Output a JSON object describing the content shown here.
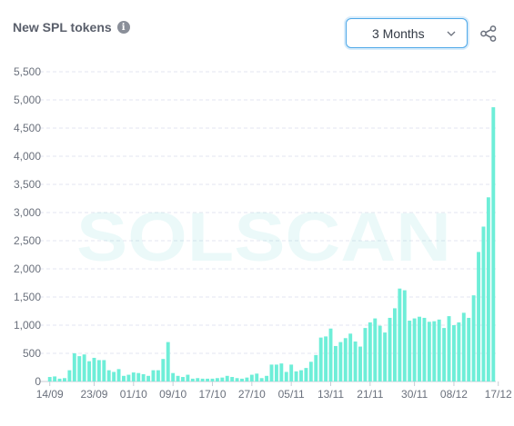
{
  "header": {
    "title": "New SPL tokens",
    "info_icon": "info-icon",
    "range_selected": "3 Months",
    "share_icon": "share-icon"
  },
  "watermark": {
    "text": "SOLSCAN"
  },
  "colors": {
    "bar": "#6eeed8",
    "grid": "#e3e6f0",
    "accent": "#4ea8e8"
  },
  "chart_data": {
    "type": "bar",
    "title": "New SPL tokens",
    "xlabel": "",
    "ylabel": "",
    "ylim": [
      0,
      5500
    ],
    "yticks": [
      0,
      500,
      1000,
      1500,
      2000,
      2500,
      3000,
      3500,
      4000,
      4500,
      5000,
      5500
    ],
    "ytick_labels": [
      "0",
      "500",
      "1,000",
      "1,500",
      "2,000",
      "2,500",
      "3,000",
      "3,500",
      "4,000",
      "4,500",
      "5,000",
      "5,500"
    ],
    "xtick_labels": [
      "14/09",
      "23/09",
      "01/10",
      "09/10",
      "17/10",
      "27/10",
      "05/11",
      "13/11",
      "21/11",
      "30/11",
      "08/12",
      "17/12"
    ],
    "xtick_indices": [
      0,
      9,
      17,
      25,
      33,
      41,
      49,
      57,
      65,
      74,
      82,
      91
    ],
    "grid": true,
    "values": [
      80,
      90,
      50,
      60,
      200,
      500,
      450,
      480,
      360,
      420,
      380,
      380,
      200,
      170,
      220,
      100,
      120,
      160,
      150,
      130,
      100,
      200,
      200,
      400,
      700,
      150,
      100,
      80,
      120,
      50,
      60,
      50,
      50,
      50,
      60,
      70,
      100,
      80,
      60,
      50,
      70,
      120,
      140,
      60,
      100,
      300,
      300,
      320,
      170,
      300,
      180,
      200,
      240,
      350,
      470,
      780,
      800,
      940,
      630,
      700,
      770,
      850,
      710,
      620,
      950,
      1050,
      1120,
      990,
      870,
      1130,
      1300,
      1650,
      1620,
      1080,
      1120,
      1150,
      1130,
      1060,
      1070,
      1100,
      950,
      1160,
      1000,
      1050,
      1220,
      1130,
      1530,
      2300,
      2750,
      3270,
      4870
    ]
  }
}
